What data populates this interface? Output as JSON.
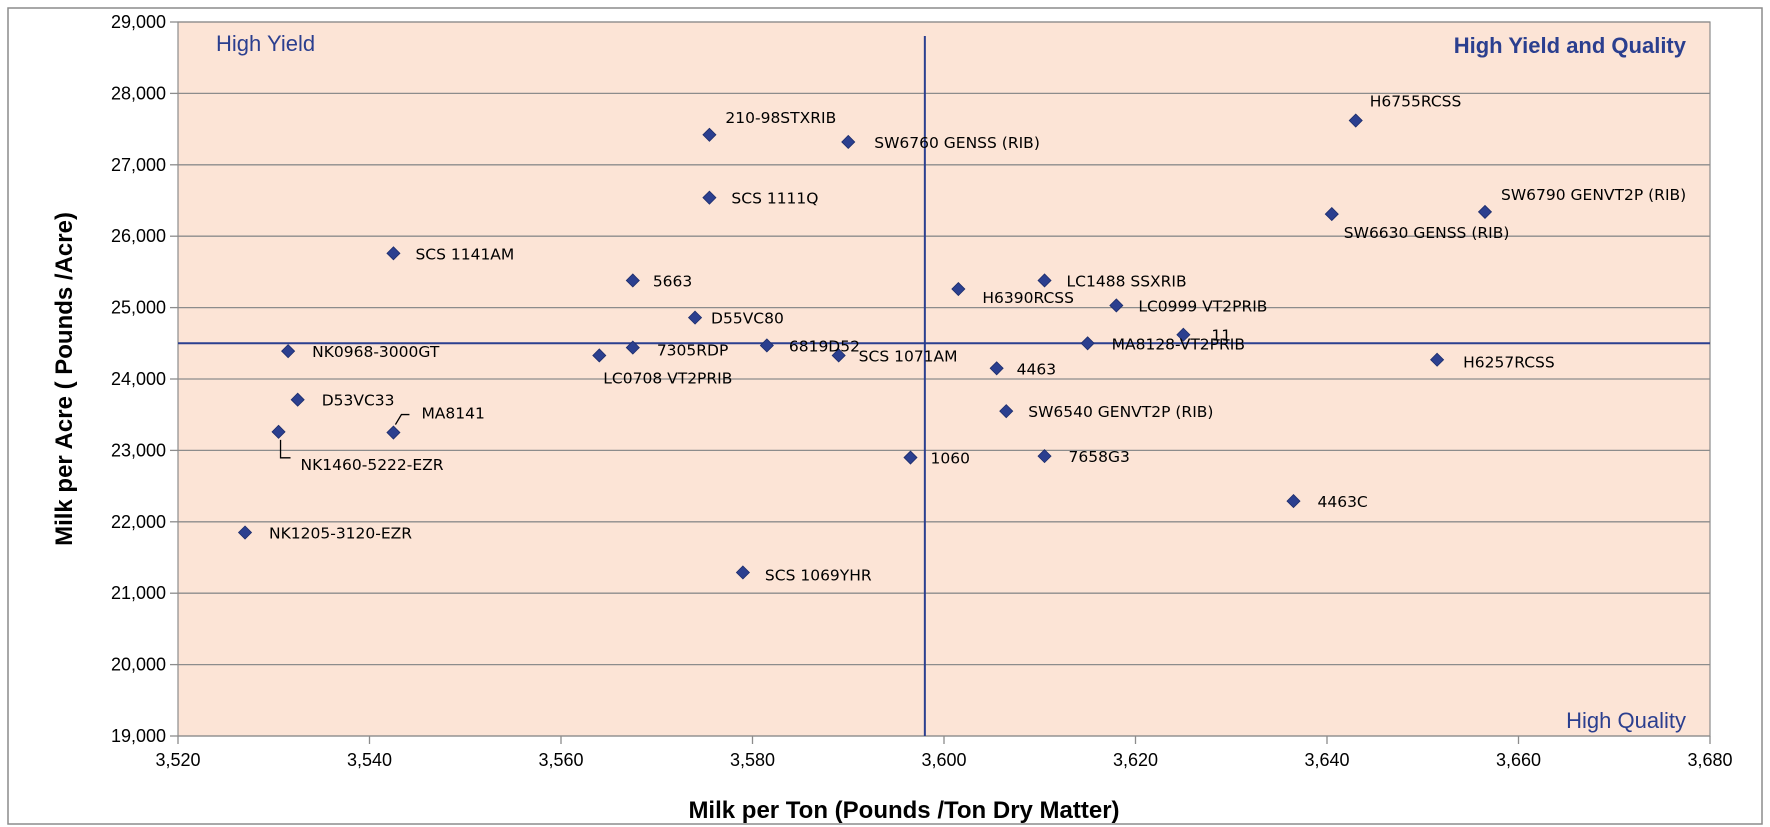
{
  "chart_data": {
    "type": "scatter",
    "xlabel": "Milk per Ton (Pounds /Ton Dry Matter)",
    "ylabel": "Milk per Acre ( Pounds /Acre)",
    "xlim": [
      3520,
      3680
    ],
    "ylim": [
      19000,
      29000
    ],
    "x_ticks": [
      3520,
      3540,
      3560,
      3580,
      3600,
      3620,
      3640,
      3660,
      3680
    ],
    "y_ticks": [
      19000,
      20000,
      21000,
      22000,
      23000,
      24000,
      25000,
      26000,
      27000,
      28000,
      29000
    ],
    "x_tick_labels": [
      "3,520",
      "3,540",
      "3,560",
      "3,580",
      "3,600",
      "3,620",
      "3,640",
      "3,660",
      "3,680"
    ],
    "y_tick_labels": [
      "19,000",
      "20,000",
      "21,000",
      "22,000",
      "23,000",
      "24,000",
      "25,000",
      "26,000",
      "27,000",
      "28,000",
      "29,000"
    ],
    "grid": "horizontal",
    "reference_lines": {
      "x": 3598,
      "y": 24500
    },
    "quadrant_labels": {
      "top_left": "High Yield",
      "top_right": "High Yield and Quality",
      "bottom_right": "High Quality"
    },
    "colors": {
      "plot_bg": "#fce4d6",
      "marker": "#2b3f8f",
      "ref_line": "#2b3f8f",
      "grid": "#8c8c8c"
    },
    "points": [
      {
        "label": "H6755RCSS",
        "x": 3643,
        "y": 27620
      },
      {
        "label": "210-98STXRIB",
        "x": 3575.5,
        "y": 27420
      },
      {
        "label": "SW6760 GENSS (RIB)",
        "x": 3590,
        "y": 27320
      },
      {
        "label": "SCS 1111Q",
        "x": 3575.5,
        "y": 26540
      },
      {
        "label": "SW6790 GENVT2P (RIB)",
        "x": 3656.5,
        "y": 26340
      },
      {
        "label": "SW6630 GENSS (RIB)",
        "x": 3640.5,
        "y": 26310
      },
      {
        "label": "SCS 1141AM",
        "x": 3542.5,
        "y": 25760
      },
      {
        "label": "5663",
        "x": 3567.5,
        "y": 25380
      },
      {
        "label": "LC1488 SSXRIB",
        "x": 3610.5,
        "y": 25380
      },
      {
        "label": "H6390RCSS",
        "x": 3601.5,
        "y": 25260
      },
      {
        "label": "LC0999 VT2PRIB",
        "x": 3618,
        "y": 25030
      },
      {
        "label": "D55VC80",
        "x": 3574,
        "y": 24860
      },
      {
        "label": "11",
        "x": 3625,
        "y": 24620
      },
      {
        "label": "MA8128-VT2PRIB",
        "x": 3615,
        "y": 24500
      },
      {
        "label": "6819D52",
        "x": 3581.5,
        "y": 24470
      },
      {
        "label": "7305RDP",
        "x": 3567.5,
        "y": 24440
      },
      {
        "label": "NK0968-3000GT",
        "x": 3531.5,
        "y": 24390
      },
      {
        "label": "LC0708 VT2PRIB",
        "x": 3564,
        "y": 24330
      },
      {
        "label": "SCS 1071AM",
        "x": 3589,
        "y": 24330
      },
      {
        "label": "H6257RCSS",
        "x": 3651.5,
        "y": 24270
      },
      {
        "label": "4463",
        "x": 3605.5,
        "y": 24150
      },
      {
        "label": "D53VC33",
        "x": 3532.5,
        "y": 23710
      },
      {
        "label": "SW6540 GENVT2P (RIB)",
        "x": 3606.5,
        "y": 23550
      },
      {
        "label": "NK1460-5222-EZR",
        "x": 3530.5,
        "y": 23260
      },
      {
        "label": "MA8141",
        "x": 3542.5,
        "y": 23250
      },
      {
        "label": "7658G3",
        "x": 3610.5,
        "y": 22920
      },
      {
        "label": "1060",
        "x": 3596.5,
        "y": 22900
      },
      {
        "label": "4463C",
        "x": 3636.5,
        "y": 22290
      },
      {
        "label": "NK1205-3120-EZR",
        "x": 3527,
        "y": 21850
      },
      {
        "label": "SCS 1069YHR",
        "x": 3579,
        "y": 21290
      }
    ]
  }
}
